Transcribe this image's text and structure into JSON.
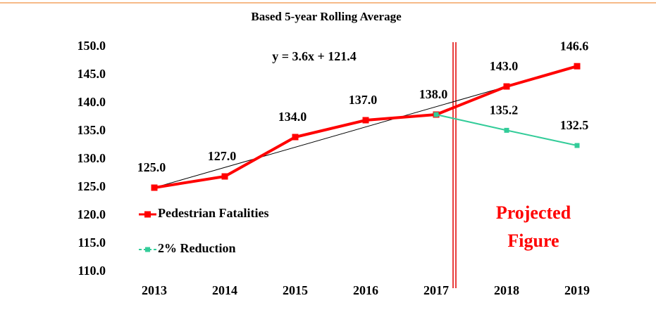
{
  "chart_data": {
    "type": "line",
    "title": "Based 5-year Rolling Average",
    "categories": [
      "2013",
      "2014",
      "2015",
      "2016",
      "2017",
      "2018",
      "2019"
    ],
    "series": [
      {
        "name": "Pedestrian Fatalities",
        "color": "#ff0000",
        "values": [
          125,
          127,
          134,
          137,
          138,
          143,
          146.6
        ],
        "value_labels": [
          "125.0",
          "127.0",
          "134.0",
          "137.0",
          "138.0",
          "143.0",
          "146.6"
        ]
      },
      {
        "name": "2% Reduction",
        "color": "#33cc99",
        "values": [
          null,
          null,
          null,
          null,
          138,
          135.2,
          132.5
        ],
        "value_labels": [
          null,
          null,
          null,
          null,
          null,
          "135.2",
          "132.5"
        ]
      }
    ],
    "trendline": {
      "label": "y = 3.6x + 121.4",
      "slope": 3.6,
      "intercept": 121.4,
      "color": "#000000"
    },
    "annotation": [
      "Projected",
      "Figure"
    ],
    "ylim": [
      110,
      150
    ],
    "yticks": [
      {
        "value": 110,
        "label": "110.0"
      },
      {
        "value": 115,
        "label": "115.0"
      },
      {
        "value": 120,
        "label": "120.0"
      },
      {
        "value": 125,
        "label": "125.0"
      },
      {
        "value": 130,
        "label": "130.0"
      },
      {
        "value": 135,
        "label": "135.0"
      },
      {
        "value": 140,
        "label": "140.0"
      },
      {
        "value": 145,
        "label": "145.0"
      },
      {
        "value": 150,
        "label": "150.0"
      }
    ],
    "legend": "left",
    "grid": false
  }
}
